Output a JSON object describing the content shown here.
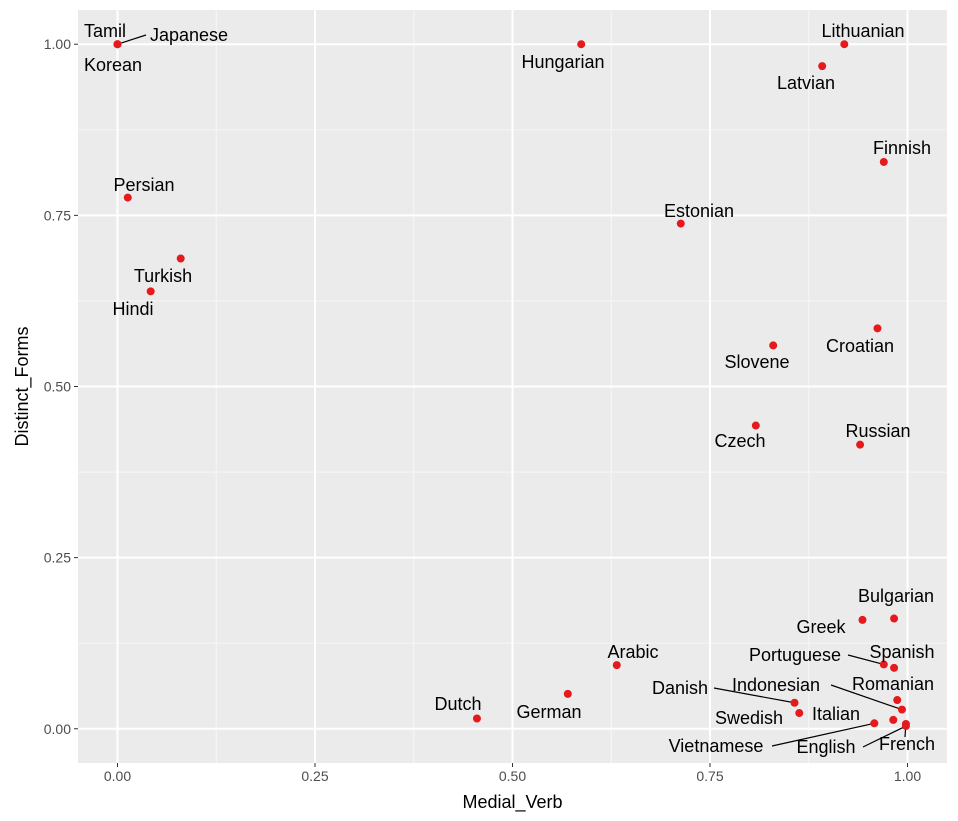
{
  "chart_data": {
    "type": "scatter",
    "title": "",
    "xlabel": "Medial_Verb",
    "ylabel": "Distinct_Forms",
    "xlim": [
      -0.05,
      1.05
    ],
    "ylim": [
      -0.05,
      1.05
    ],
    "x_ticks": [
      0.0,
      0.25,
      0.5,
      0.75,
      1.0
    ],
    "x_tick_labels": [
      "0.00",
      "0.25",
      "0.50",
      "0.75",
      "1.00"
    ],
    "y_ticks": [
      0.0,
      0.25,
      0.5,
      0.75,
      1.0
    ],
    "y_tick_labels": [
      "0.00",
      "0.25",
      "0.50",
      "0.75",
      "1.00"
    ],
    "grid": true,
    "legend": "none",
    "colors": {
      "panel": "#ebebeb",
      "grid_major": "#ffffff",
      "grid_minor": "#f5f5f5",
      "point": "#e41a1c",
      "tick_text": "#4d4d4d",
      "tick_mark": "#333333",
      "label_text": "#000000"
    },
    "points": [
      {
        "label": "Tamil",
        "x": 0.0,
        "y": 1.0
      },
      {
        "label": "Japanese",
        "x": 0.0,
        "y": 1.0
      },
      {
        "label": "Korean",
        "x": 0.0,
        "y": 1.0
      },
      {
        "label": "Hungarian",
        "x": 0.587,
        "y": 1.0
      },
      {
        "label": "Lithuanian",
        "x": 0.92,
        "y": 1.0
      },
      {
        "label": "Latvian",
        "x": 0.892,
        "y": 0.968
      },
      {
        "label": "Finnish",
        "x": 0.97,
        "y": 0.828
      },
      {
        "label": "Persian",
        "x": 0.013,
        "y": 0.776
      },
      {
        "label": "Estonian",
        "x": 0.713,
        "y": 0.738
      },
      {
        "label": "Turkish",
        "x": 0.08,
        "y": 0.687
      },
      {
        "label": "Hindi",
        "x": 0.042,
        "y": 0.639
      },
      {
        "label": "Croatian",
        "x": 0.962,
        "y": 0.585
      },
      {
        "label": "Slovene",
        "x": 0.83,
        "y": 0.56
      },
      {
        "label": "Czech",
        "x": 0.808,
        "y": 0.443
      },
      {
        "label": "Russian",
        "x": 0.94,
        "y": 0.415
      },
      {
        "label": "Bulgarian",
        "x": 0.983,
        "y": 0.161
      },
      {
        "label": "Greek",
        "x": 0.943,
        "y": 0.159
      },
      {
        "label": "Arabic",
        "x": 0.632,
        "y": 0.093
      },
      {
        "label": "Spanish",
        "x": 0.983,
        "y": 0.089
      },
      {
        "label": "Portuguese",
        "x": 0.97,
        "y": 0.094
      },
      {
        "label": "German",
        "x": 0.57,
        "y": 0.051
      },
      {
        "label": "Romanian",
        "x": 0.987,
        "y": 0.042
      },
      {
        "label": "Danish",
        "x": 0.857,
        "y": 0.038
      },
      {
        "label": "Indonesian",
        "x": 0.993,
        "y": 0.028
      },
      {
        "label": "Swedish",
        "x": 0.863,
        "y": 0.023
      },
      {
        "label": "Dutch",
        "x": 0.455,
        "y": 0.015
      },
      {
        "label": "Italian",
        "x": 0.982,
        "y": 0.013
      },
      {
        "label": "Vietnamese",
        "x": 0.958,
        "y": 0.008
      },
      {
        "label": "French",
        "x": 0.998,
        "y": 0.007
      },
      {
        "label": "English",
        "x": 0.998,
        "y": 0.004
      }
    ]
  }
}
